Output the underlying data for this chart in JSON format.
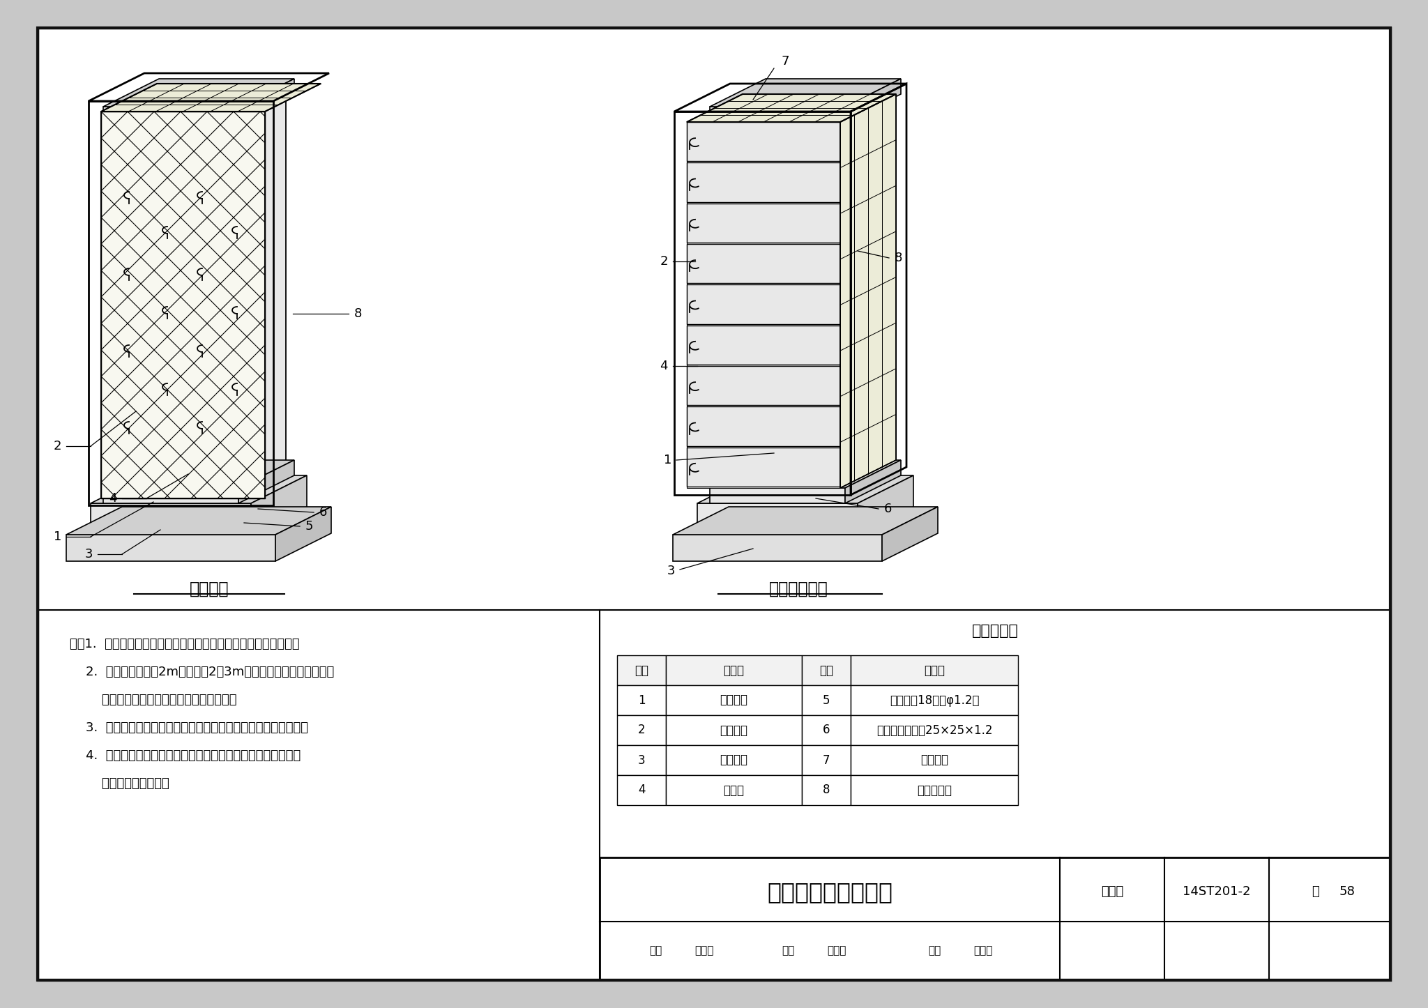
{
  "title": "平壁设备保温结构图",
  "fig_collection": "图集号",
  "fig_number": "14ST201-2",
  "page_label": "页",
  "page_number": "58",
  "left_diagram_title": "绑扎结构",
  "right_diagram_title": "自锁紧板结构",
  "table_title": "名称对照表",
  "table_headers": [
    "编号",
    "名　称",
    "编号",
    "名　称"
  ],
  "table_rows": [
    [
      "1",
      "平壁设备",
      "5",
      "镀锌铁丝18号（φ1.2）"
    ],
    [
      "2",
      "保温钩钉",
      "6",
      "六角镀锌铁丝网25×25×1.2"
    ],
    [
      "3",
      "设备基础",
      "7",
      "自锁紧板"
    ],
    [
      "4",
      "绝热层",
      "8",
      "金属保护层"
    ]
  ],
  "notes_line1": "注：1.  本图为平壁设备保温绝热层，采用绑扎和自锁紧板结构图。",
  "notes_line2": "    2.  当设备高度大于2m时，每隔2～3m处焊支承板一周。当不允许",
  "notes_line3": "        直接焊于设备上时，应采用抱箍支承件。",
  "notes_line4": "    3.  如设备底部需要保温时，可采用侧壁同样的做法敷设绝热层。",
  "notes_line5": "    4.  本图外侧保护层采用金属薄板，也可视工程具体情况，采用",
  "notes_line6": "        其他材质的保护层。",
  "footer_shenhe": "审核",
  "footer_name1": "张先群",
  "footer_jiaodui": "校对",
  "footer_name2": "赵际顺",
  "footer_sheji": "设计",
  "footer_name3": "赵恒鹏",
  "bg_outer": "#c8c8c8",
  "bg_inner": "#ffffff",
  "lc": "#000000"
}
